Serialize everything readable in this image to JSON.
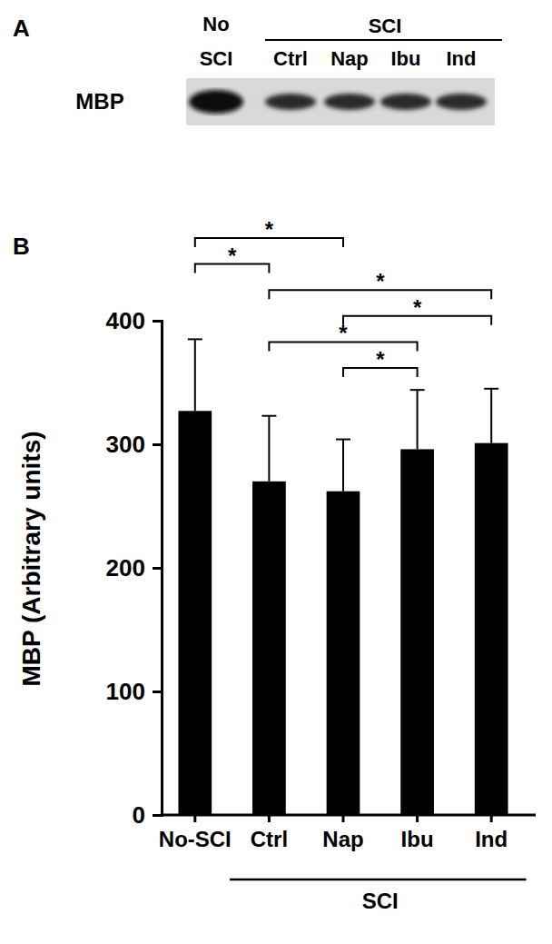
{
  "chart_data": [
    {
      "type": "blot",
      "panel": "A",
      "row_label": "MBP",
      "lanes": [
        "No SCI",
        "Ctrl",
        "Nap",
        "Ibu",
        "Ind"
      ],
      "group_label": "SCI",
      "group_range": [
        1,
        4
      ]
    },
    {
      "type": "bar",
      "panel": "B",
      "y_label": "MBP (Arbitrary units)",
      "categories": [
        "No-SCI",
        "Ctrl",
        "Nap",
        "Ibu",
        "Ind"
      ],
      "values": [
        327,
        270,
        262,
        296,
        301
      ],
      "errors": [
        58,
        53,
        42,
        48,
        44
      ],
      "color": "#000000",
      "ylim": [
        0,
        400
      ],
      "yticks": [
        0,
        100,
        200,
        300,
        400
      ],
      "group_label": "SCI",
      "group_range": [
        1,
        4
      ],
      "significance": [
        {
          "pair": [
            0,
            2
          ],
          "label": "*"
        },
        {
          "pair": [
            0,
            1
          ],
          "label": "*"
        },
        {
          "pair": [
            1,
            4
          ],
          "label": "*"
        },
        {
          "pair": [
            2,
            4
          ],
          "label": "*"
        },
        {
          "pair": [
            1,
            3
          ],
          "label": "*"
        },
        {
          "pair": [
            2,
            3
          ],
          "label": "*"
        }
      ]
    }
  ]
}
